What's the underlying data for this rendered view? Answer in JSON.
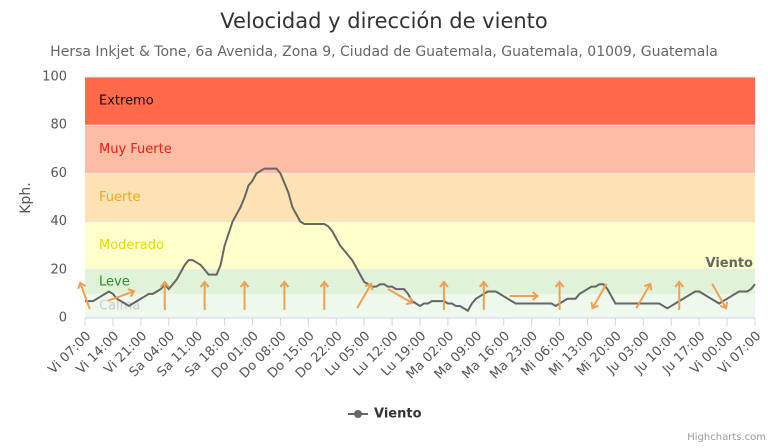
{
  "chart_data": {
    "type": "line",
    "title": "Velocidad y dirección de viento",
    "subtitle": "Hersa Inkjet & Tone, 6a Avenida, Zona 9, Ciudad de Guatemala, Guatemala, 01009, Guatemala",
    "y_label": "Kph.",
    "ylim": [
      0,
      100
    ],
    "yticks": [
      0,
      20,
      40,
      60,
      80,
      100
    ],
    "categories": [
      "Vi 07:00",
      null,
      null,
      null,
      null,
      null,
      null,
      "Vi 14:00",
      null,
      null,
      null,
      null,
      null,
      null,
      "Vi 21:00",
      null,
      null,
      null,
      null,
      null,
      null,
      "Sa 04:00",
      null,
      null,
      null,
      null,
      null,
      null,
      "Sa 11:00",
      null,
      null,
      null,
      null,
      null,
      null,
      "Sa 18:00",
      null,
      null,
      null,
      null,
      null,
      null,
      "Do 01:00",
      null,
      null,
      null,
      null,
      null,
      null,
      "Do 08:00",
      null,
      null,
      null,
      null,
      null,
      null,
      "Do 15:00",
      null,
      null,
      null,
      null,
      null,
      null,
      "Do 22:00",
      null,
      null,
      null,
      null,
      null,
      null,
      "Lu 05:00",
      null,
      null,
      null,
      null,
      null,
      null,
      "Lu 12:00",
      null,
      null,
      null,
      null,
      null,
      null,
      "Lu 19:00",
      null,
      null,
      null,
      null,
      null,
      null,
      "Ma 02:00",
      null,
      null,
      null,
      null,
      null,
      null,
      "Ma 09:00",
      null,
      null,
      null,
      null,
      null,
      null,
      "Ma 16:00",
      null,
      null,
      null,
      null,
      null,
      null,
      "Ma 23:00",
      null,
      null,
      null,
      null,
      null,
      null,
      "Mi 06:00",
      null,
      null,
      null,
      null,
      null,
      null,
      "Mi 13:00",
      null,
      null,
      null,
      null,
      null,
      null,
      "Mi 20:00",
      null,
      null,
      null,
      null,
      null,
      null,
      "Ju 03:00",
      null,
      null,
      null,
      null,
      null,
      null,
      "Ju 10:00",
      null,
      null,
      null,
      null,
      null,
      null,
      "Ju 17:00",
      null,
      null,
      null,
      null,
      null,
      null,
      "Vi 00:00",
      null,
      null,
      null,
      null,
      null,
      null,
      "Vi 07:00"
    ],
    "series": [
      {
        "name": "Viento",
        "color": "#666666",
        "values": [
          7,
          7,
          7,
          8,
          9,
          10,
          11,
          10,
          8,
          7,
          6,
          5,
          6,
          7,
          8,
          9,
          10,
          10,
          11,
          12,
          14,
          12,
          14,
          16,
          19,
          22,
          24,
          24,
          23,
          22,
          20,
          18,
          18,
          18,
          22,
          30,
          35,
          40,
          43,
          46,
          50,
          55,
          57,
          60,
          61,
          62,
          62,
          62,
          62,
          60,
          56,
          52,
          46,
          43,
          40,
          39,
          39,
          39,
          39,
          39,
          39,
          38,
          36,
          33,
          30,
          28,
          26,
          24,
          21,
          18,
          15,
          14,
          13,
          13,
          14,
          14,
          13,
          13,
          12,
          12,
          12,
          10,
          7,
          6,
          5,
          6,
          6,
          7,
          7,
          7,
          7,
          6,
          6,
          5,
          5,
          4,
          3,
          6,
          8,
          9,
          10,
          11,
          11,
          11,
          10,
          9,
          8,
          7,
          6,
          6,
          6,
          6,
          6,
          6,
          6,
          6,
          6,
          6,
          5,
          6,
          7,
          8,
          8,
          8,
          10,
          11,
          12,
          13,
          13,
          14,
          14,
          12,
          9,
          6,
          6,
          6,
          6,
          6,
          6,
          6,
          6,
          6,
          6,
          6,
          6,
          5,
          4,
          5,
          6,
          7,
          8,
          9,
          10,
          11,
          11,
          10,
          9,
          8,
          7,
          6,
          7,
          8,
          9,
          10,
          11,
          11,
          11,
          12,
          14
        ]
      }
    ],
    "wind_barbs": {
      "indices": [
        0,
        9,
        20,
        30,
        40,
        50,
        60,
        70,
        79,
        90,
        100,
        110,
        119,
        129,
        140,
        149,
        159
      ],
      "directions": [
        340,
        70,
        0,
        0,
        0,
        0,
        0,
        30,
        120,
        0,
        0,
        90,
        0,
        210,
        30,
        0,
        150
      ],
      "color": "#f0a050"
    },
    "plot_bands": [
      {
        "from": 0,
        "to": 10,
        "label": "Calma",
        "color": "#eef8ec",
        "label_color": "#cccccc"
      },
      {
        "from": 10,
        "to": 20,
        "label": "Leve",
        "color": "#e0f2d8",
        "label_color": "#2e8b2e"
      },
      {
        "from": 20,
        "to": 40,
        "label": "Moderado",
        "color": "#ffffcc",
        "label_color": "#e6d800"
      },
      {
        "from": 40,
        "to": 60,
        "label": "Fuerte",
        "color": "#fde2b4",
        "label_color": "#f5a623"
      },
      {
        "from": 60,
        "to": 80,
        "label": "Muy Fuerte",
        "color": "#fdbca4",
        "label_color": "#e8201a"
      },
      {
        "from": 80,
        "to": 100,
        "label": "Extremo",
        "color": "#ff6a4a",
        "label_color": "#111111"
      }
    ],
    "credits": "Highcharts.com"
  }
}
